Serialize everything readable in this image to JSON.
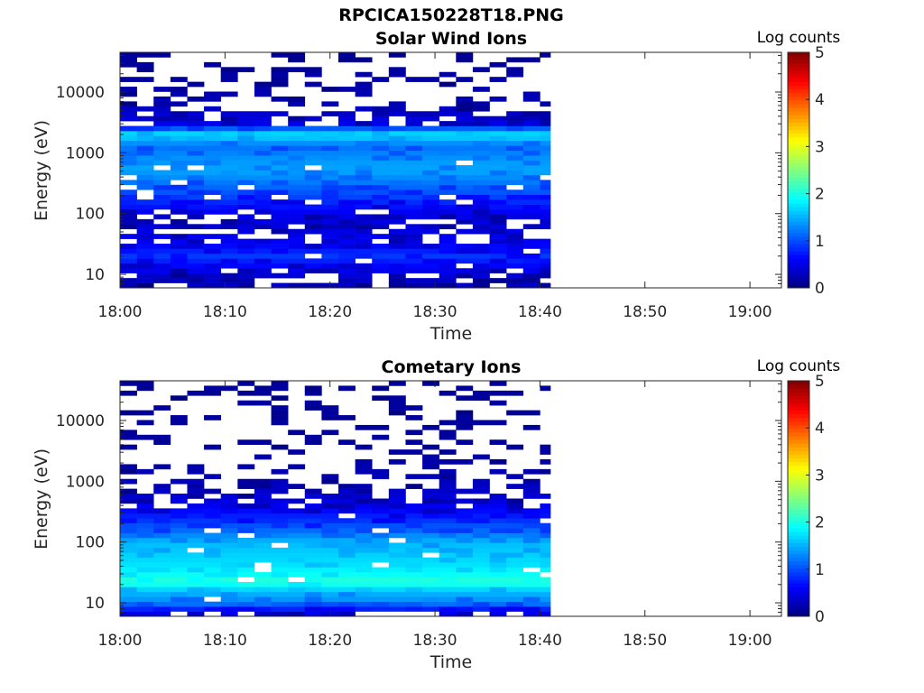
{
  "figure_title": "RPCICA150228T18.PNG",
  "chart_data": [
    {
      "type": "heatmap",
      "title": "Solar Wind Ions",
      "xlabel": "Time",
      "ylabel": "Energy (eV)",
      "x_ticks": [
        "18:00",
        "18:10",
        "18:20",
        "18:30",
        "18:40",
        "18:50",
        "19:00"
      ],
      "x_range": [
        "18:00",
        "19:03"
      ],
      "data_time_range": [
        "18:00",
        "18:41"
      ],
      "y_scale": "log",
      "y_ticks": [
        10,
        100,
        1000,
        10000
      ],
      "y_tick_labels": [
        "10",
        "100",
        "1000",
        "10000"
      ],
      "y_range": [
        6,
        45000
      ],
      "colorbar": {
        "label": "Log counts",
        "ticks": [
          "0",
          "1",
          "2",
          "3",
          "4",
          "5"
        ],
        "range": [
          0,
          5
        ],
        "colormap": "jet"
      },
      "energy_profile": [
        {
          "energy_ev": 8,
          "log_counts": 0.3
        },
        {
          "energy_ev": 12,
          "log_counts": 0.5
        },
        {
          "energy_ev": 20,
          "log_counts": 0.9
        },
        {
          "energy_ev": 30,
          "log_counts": 0.6
        },
        {
          "energy_ev": 60,
          "log_counts": 0.4
        },
        {
          "energy_ev": 100,
          "log_counts": 0.5
        },
        {
          "energy_ev": 200,
          "log_counts": 1.0
        },
        {
          "energy_ev": 300,
          "log_counts": 1.2
        },
        {
          "energy_ev": 500,
          "log_counts": 1.5
        },
        {
          "energy_ev": 800,
          "log_counts": 1.4
        },
        {
          "energy_ev": 1300,
          "log_counts": 1.2
        },
        {
          "energy_ev": 2000,
          "log_counts": 1.9
        },
        {
          "energy_ev": 3000,
          "log_counts": 0.5
        },
        {
          "energy_ev": 6000,
          "log_counts": 0.2
        },
        {
          "energy_ev": 15000,
          "log_counts": 0.1
        },
        {
          "energy_ev": 35000,
          "log_counts": 0.05
        }
      ]
    },
    {
      "type": "heatmap",
      "title": "Cometary Ions",
      "xlabel": "Time",
      "ylabel": "Energy (eV)",
      "x_ticks": [
        "18:00",
        "18:10",
        "18:20",
        "18:30",
        "18:40",
        "18:50",
        "19:00"
      ],
      "x_range": [
        "18:00",
        "19:03"
      ],
      "data_time_range": [
        "18:00",
        "18:41"
      ],
      "y_scale": "log",
      "y_ticks": [
        10,
        100,
        1000,
        10000
      ],
      "y_tick_labels": [
        "10",
        "100",
        "1000",
        "10000"
      ],
      "y_range": [
        6,
        45000
      ],
      "colorbar": {
        "label": "Log counts",
        "ticks": [
          "0",
          "1",
          "2",
          "3",
          "4",
          "5"
        ],
        "range": [
          0,
          5
        ],
        "colormap": "jet"
      },
      "energy_profile": [
        {
          "energy_ev": 7,
          "log_counts": 0.5
        },
        {
          "energy_ev": 10,
          "log_counts": 1.3
        },
        {
          "energy_ev": 15,
          "log_counts": 1.6
        },
        {
          "energy_ev": 22,
          "log_counts": 2.2
        },
        {
          "energy_ev": 30,
          "log_counts": 2.0
        },
        {
          "energy_ev": 45,
          "log_counts": 1.8
        },
        {
          "energy_ev": 70,
          "log_counts": 1.7
        },
        {
          "energy_ev": 100,
          "log_counts": 1.6
        },
        {
          "energy_ev": 150,
          "log_counts": 1.2
        },
        {
          "energy_ev": 250,
          "log_counts": 0.8
        },
        {
          "energy_ev": 400,
          "log_counts": 0.5
        },
        {
          "energy_ev": 700,
          "log_counts": 0.3
        },
        {
          "energy_ev": 1200,
          "log_counts": 0.2
        },
        {
          "energy_ev": 2200,
          "log_counts": 0.1
        },
        {
          "energy_ev": 4000,
          "log_counts": 0.05
        }
      ]
    }
  ]
}
